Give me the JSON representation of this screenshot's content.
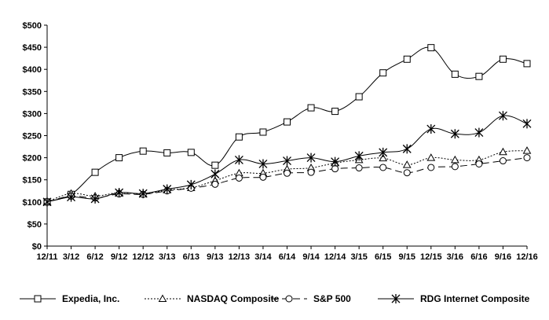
{
  "chart_data": {
    "type": "line",
    "title": "",
    "xlabel": "",
    "ylabel": "",
    "ylim": [
      0,
      500
    ],
    "y_ticks": [
      0,
      50,
      100,
      150,
      200,
      250,
      300,
      350,
      400,
      450,
      500
    ],
    "y_tick_labels": [
      "$0",
      "$50",
      "$100",
      "$150",
      "$200",
      "$250",
      "$300",
      "$350",
      "$400",
      "$450",
      "$500"
    ],
    "categories": [
      "12/11",
      "3/12",
      "6/12",
      "9/12",
      "12/12",
      "3/13",
      "6/13",
      "9/13",
      "12/13",
      "3/14",
      "6/14",
      "9/14",
      "12/14",
      "3/15",
      "6/15",
      "9/15",
      "12/15",
      "3/16",
      "6/16",
      "9/16",
      "12/16"
    ],
    "grid": false,
    "legend_position": "bottom",
    "series": [
      {
        "name": "Expedia, Inc.",
        "marker": "square",
        "line_style": "solid",
        "color": "#000000",
        "values": [
          100,
          117,
          167,
          200,
          215,
          211,
          212,
          183,
          247,
          258,
          281,
          313,
          305,
          338,
          392,
          423,
          449,
          389,
          384,
          423,
          413
        ]
      },
      {
        "name": "NASDAQ Composite",
        "marker": "triangle",
        "line_style": "dotted",
        "color": "#000000",
        "values": [
          100,
          119,
          113,
          121,
          118,
          127,
          132,
          148,
          165,
          165,
          174,
          177,
          188,
          195,
          199,
          184,
          200,
          195,
          195,
          213,
          216
        ]
      },
      {
        "name": "S&P 500",
        "marker": "circle",
        "line_style": "dashed",
        "color": "#000000",
        "values": [
          100,
          113,
          109,
          118,
          117,
          125,
          131,
          140,
          154,
          156,
          165,
          167,
          175,
          177,
          178,
          166,
          178,
          180,
          186,
          193,
          200
        ]
      },
      {
        "name": "RDG Internet Composite",
        "marker": "asterisk",
        "line_style": "solid",
        "color": "#000000",
        "values": [
          100,
          111,
          107,
          121,
          119,
          129,
          139,
          163,
          195,
          186,
          193,
          200,
          191,
          204,
          212,
          220,
          265,
          254,
          257,
          295,
          277
        ]
      }
    ]
  }
}
